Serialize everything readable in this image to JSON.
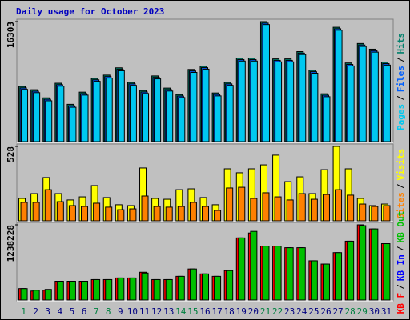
{
  "legend_separator": "/",
  "chart_data": [
    {
      "type": "bar",
      "title": "Daily usage for October 2023",
      "ylim": [
        0,
        16303
      ],
      "yticks": [
        16303
      ],
      "legend_reverse": true,
      "series": [
        {
          "name": "Hits",
          "color": "#00806c",
          "values": [
            7491,
            7050,
            5948,
            7931,
            5067,
            6720,
            8592,
            9033,
            10024,
            8041,
            6940,
            8923,
            7270,
            6389,
            9804,
            10245,
            6609,
            8041,
            11346,
            11346,
            16303,
            11236,
            11236,
            12227,
            9694,
            6499,
            15532,
            10685,
            13329,
            12558,
            10795
          ]
        },
        {
          "name": "Files",
          "color": "#0060ff",
          "values": [
            7291,
            6850,
            5748,
            7731,
            4867,
            6520,
            8392,
            8833,
            9824,
            7841,
            6740,
            8723,
            7070,
            6189,
            9604,
            10045,
            6409,
            7841,
            11146,
            11146,
            16103,
            11036,
            11036,
            12027,
            9494,
            6299,
            15332,
            10485,
            13129,
            12358,
            10595
          ]
        },
        {
          "name": "Pages",
          "color": "#00c8f0",
          "values": [
            7091,
            6650,
            5548,
            7531,
            4667,
            6320,
            8192,
            8633,
            9624,
            7641,
            6540,
            8523,
            6870,
            5989,
            9404,
            9845,
            6209,
            7641,
            10946,
            10946,
            15903,
            10836,
            10836,
            11827,
            9294,
            6099,
            15132,
            10285,
            12929,
            12158,
            10395
          ]
        }
      ]
    },
    {
      "type": "bar",
      "ylim": [
        0,
        528
      ],
      "yticks": [
        528
      ],
      "legend_reverse": true,
      "series": [
        {
          "name": "Visits",
          "color": "#ffff00",
          "values": [
            159,
            193,
            307,
            193,
            148,
            170,
            250,
            165,
            114,
            108,
            375,
            159,
            153,
            221,
            227,
            165,
            114,
            369,
            341,
            369,
            397,
            466,
            278,
            312,
            193,
            363,
            528,
            369,
            159,
            108,
            119
          ]
        },
        {
          "name": "Sites",
          "color": "#ff8000",
          "values": [
            131,
            131,
            221,
            136,
            108,
            102,
            125,
            97,
            79,
            85,
            176,
            102,
            97,
            102,
            131,
            102,
            74,
            233,
            238,
            159,
            199,
            170,
            148,
            193,
            153,
            187,
            221,
            182,
            119,
            102,
            108
          ]
        }
      ]
    },
    {
      "type": "bar",
      "ylim": [
        0,
        1238228
      ],
      "yticks": [
        1238228
      ],
      "legend_reverse": false,
      "categories": [
        "1",
        "2",
        "3",
        "4",
        "5",
        "6",
        "7",
        "8",
        "9",
        "10",
        "11",
        "12",
        "13",
        "14",
        "15",
        "16",
        "17",
        "18",
        "19",
        "20",
        "21",
        "22",
        "23",
        "24",
        "25",
        "26",
        "27",
        "28",
        "29",
        "30",
        "31"
      ],
      "weekend_categories": [
        "1",
        "7",
        "8",
        "14",
        "15",
        "21",
        "22",
        "28",
        "29"
      ],
      "weekend_color": "#008040",
      "category_color": "#000080",
      "series": [
        {
          "name": "KB F",
          "color": "#ff0000",
          "values": [
            188426,
            148049,
            161508,
            309557,
            309557,
            309557,
            336475,
            336475,
            363393,
            363393,
            457607,
            336475,
            336475,
            390311,
            511433,
            430689,
            390311,
            484515,
            1022884,
            1103639,
            888294,
            888294,
            861376,
            861376,
            646033,
            592197,
            780622,
            969046,
            1238228,
            1170933,
            928671
          ]
        },
        {
          "name": "KB In",
          "color": "#0000ff",
          "values": [
            null,
            null,
            null,
            null,
            null,
            null,
            null,
            null,
            null,
            null,
            null,
            null,
            null,
            null,
            null,
            null,
            null,
            null,
            null,
            null,
            null,
            null,
            null,
            null,
            null,
            null,
            null,
            null,
            null,
            null,
            null
          ]
        },
        {
          "name": "KB Out",
          "color": "#00c000",
          "values": [
            188426,
            161508,
            174967,
            309557,
            309557,
            309557,
            336475,
            336475,
            363393,
            363393,
            444148,
            336475,
            336475,
            390311,
            511433,
            430689,
            390311,
            484515,
            1022884,
            1130557,
            888294,
            888294,
            861376,
            861376,
            646033,
            592197,
            780622,
            969046,
            1224770,
            1170933,
            928671
          ]
        }
      ]
    }
  ]
}
